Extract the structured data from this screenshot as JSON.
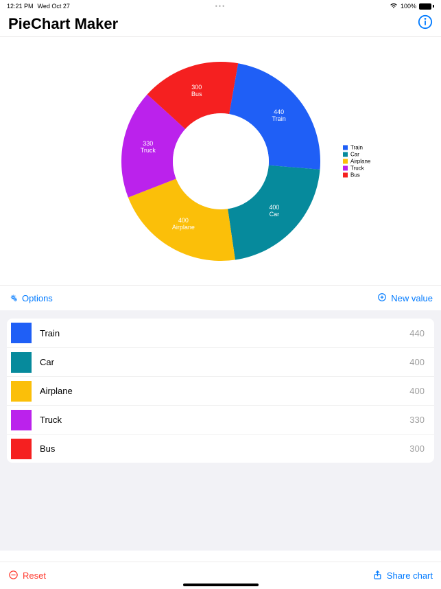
{
  "status": {
    "time": "12:21 PM",
    "date": "Wed Oct 27",
    "battery_pct": "100%"
  },
  "nav": {
    "title": "PieChart Maker"
  },
  "chart": {
    "type": "donut",
    "outer_radius": 145,
    "inner_radius": 70,
    "inner_ring_color": "#d7e3fb",
    "start_angle_deg": -80,
    "background_color": "#ffffff",
    "slices": [
      {
        "label": "Train",
        "value": 440,
        "color": "#1f5ff6"
      },
      {
        "label": "Car",
        "value": 400,
        "color": "#068a9c"
      },
      {
        "label": "Airplane",
        "value": 400,
        "color": "#fbbf09"
      },
      {
        "label": "Truck",
        "value": 330,
        "color": "#bb22ec"
      },
      {
        "label": "Bus",
        "value": 300,
        "color": "#f52020"
      }
    ],
    "label_fontsize": 9,
    "label_color": "#ffffff"
  },
  "legend": {
    "items": [
      {
        "label": "Train",
        "color": "#1f5ff6"
      },
      {
        "label": "Car",
        "color": "#068a9c"
      },
      {
        "label": "Airplane",
        "color": "#fbbf09"
      },
      {
        "label": "Truck",
        "color": "#bb22ec"
      },
      {
        "label": "Bus",
        "color": "#f52020"
      }
    ]
  },
  "toolbar": {
    "options_label": "Options",
    "new_value_label": "New value"
  },
  "list": {
    "rows": [
      {
        "label": "Train",
        "value": 440,
        "color": "#1f5ff6"
      },
      {
        "label": "Car",
        "value": 400,
        "color": "#068a9c"
      },
      {
        "label": "Airplane",
        "value": 400,
        "color": "#fbbf09"
      },
      {
        "label": "Truck",
        "value": 330,
        "color": "#bb22ec"
      },
      {
        "label": "Bus",
        "value": 300,
        "color": "#f52020"
      }
    ]
  },
  "footer": {
    "reset_label": "Reset",
    "share_label": "Share chart"
  },
  "colors": {
    "accent": "#007aff",
    "destructive": "#ff3b30",
    "secondary_text": "#a0a0a0",
    "group_bg": "#f2f2f6"
  }
}
